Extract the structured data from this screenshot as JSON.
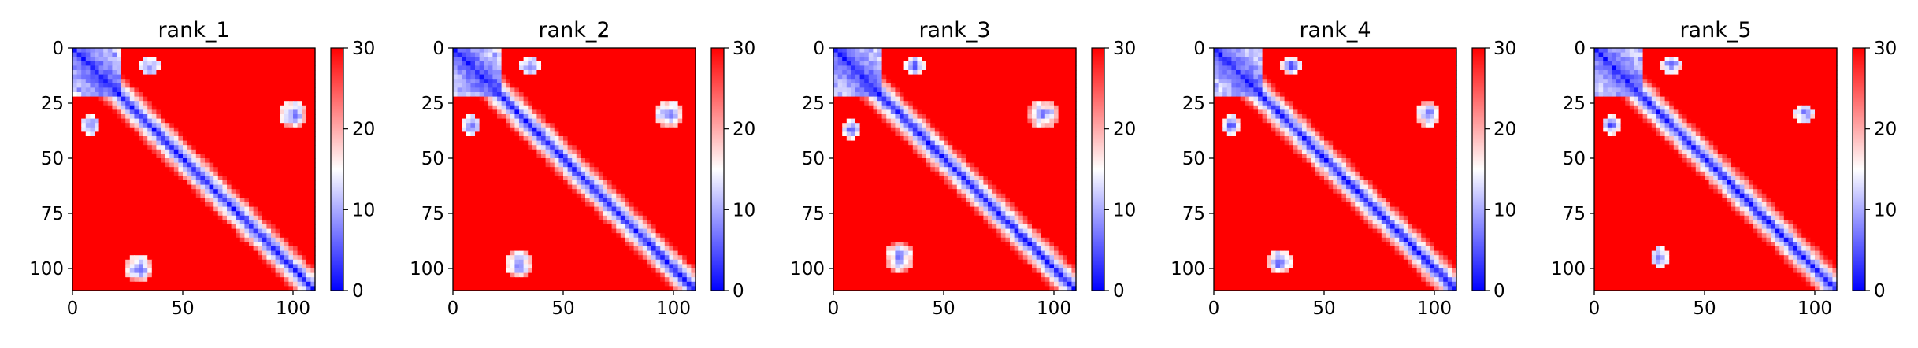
{
  "chart_data": [
    {
      "type": "heatmap",
      "title": "rank_1",
      "xlim": [
        0,
        110
      ],
      "ylim": [
        110,
        0
      ],
      "xticks": [
        0,
        50,
        100
      ],
      "yticks": [
        0,
        25,
        50,
        75,
        100
      ],
      "xtick_labels": [
        "0",
        "50",
        "100"
      ],
      "ytick_labels": [
        "0",
        "25",
        "50",
        "75",
        "100"
      ],
      "colorbar": {
        "range": [
          0,
          30
        ],
        "ticks": [
          "0",
          "10",
          "20",
          "30"
        ],
        "colormap": "bwr"
      },
      "domains": [
        [
          0,
          22
        ],
        [
          22,
          110
        ]
      ],
      "contacts": [
        [
          30,
          100,
          6
        ],
        [
          8,
          35,
          5
        ]
      ]
    },
    {
      "type": "heatmap",
      "title": "rank_2",
      "xlim": [
        0,
        110
      ],
      "ylim": [
        110,
        0
      ],
      "xticks": [
        0,
        50,
        100
      ],
      "yticks": [
        0,
        25,
        50,
        75,
        100
      ],
      "xtick_labels": [
        "0",
        "50",
        "100"
      ],
      "ytick_labels": [
        "0",
        "25",
        "50",
        "75",
        "100"
      ],
      "colorbar": {
        "range": [
          0,
          30
        ],
        "ticks": [
          "0",
          "10",
          "20",
          "30"
        ],
        "colormap": "bwr"
      },
      "domains": [
        [
          0,
          22
        ],
        [
          22,
          110
        ]
      ],
      "contacts": [
        [
          30,
          98,
          6
        ],
        [
          8,
          35,
          5
        ]
      ]
    },
    {
      "type": "heatmap",
      "title": "rank_3",
      "xlim": [
        0,
        110
      ],
      "ylim": [
        110,
        0
      ],
      "xticks": [
        0,
        50,
        100
      ],
      "yticks": [
        0,
        25,
        50,
        75,
        100
      ],
      "xtick_labels": [
        "0",
        "50",
        "100"
      ],
      "ytick_labels": [
        "0",
        "25",
        "50",
        "75",
        "100"
      ],
      "colorbar": {
        "range": [
          0,
          30
        ],
        "ticks": [
          "0",
          "10",
          "20",
          "30"
        ],
        "colormap": "bwr"
      },
      "domains": [
        [
          0,
          22
        ],
        [
          22,
          110
        ]
      ],
      "contacts": [
        [
          30,
          95,
          7
        ],
        [
          8,
          37,
          5
        ]
      ]
    },
    {
      "type": "heatmap",
      "title": "rank_4",
      "xlim": [
        0,
        110
      ],
      "ylim": [
        110,
        0
      ],
      "xticks": [
        0,
        50,
        100
      ],
      "yticks": [
        0,
        25,
        50,
        75,
        100
      ],
      "xtick_labels": [
        "0",
        "50",
        "100"
      ],
      "ytick_labels": [
        "0",
        "25",
        "50",
        "75",
        "100"
      ],
      "colorbar": {
        "range": [
          0,
          30
        ],
        "ticks": [
          "0",
          "10",
          "20",
          "30"
        ],
        "colormap": "bwr"
      },
      "domains": [
        [
          0,
          22
        ],
        [
          22,
          110
        ]
      ],
      "contacts": [
        [
          30,
          97,
          6
        ],
        [
          8,
          35,
          5
        ]
      ]
    },
    {
      "type": "heatmap",
      "title": "rank_5",
      "xlim": [
        0,
        110
      ],
      "ylim": [
        110,
        0
      ],
      "xticks": [
        0,
        50,
        100
      ],
      "yticks": [
        0,
        25,
        50,
        75,
        100
      ],
      "xtick_labels": [
        "0",
        "50",
        "100"
      ],
      "ytick_labels": [
        "0",
        "25",
        "50",
        "75",
        "100"
      ],
      "colorbar": {
        "range": [
          0,
          30
        ],
        "ticks": [
          "0",
          "10",
          "20",
          "30"
        ],
        "colormap": "bwr"
      },
      "domains": [
        [
          0,
          22
        ],
        [
          22,
          110
        ]
      ],
      "contacts": [
        [
          30,
          95,
          5
        ],
        [
          8,
          35,
          5
        ]
      ]
    }
  ]
}
